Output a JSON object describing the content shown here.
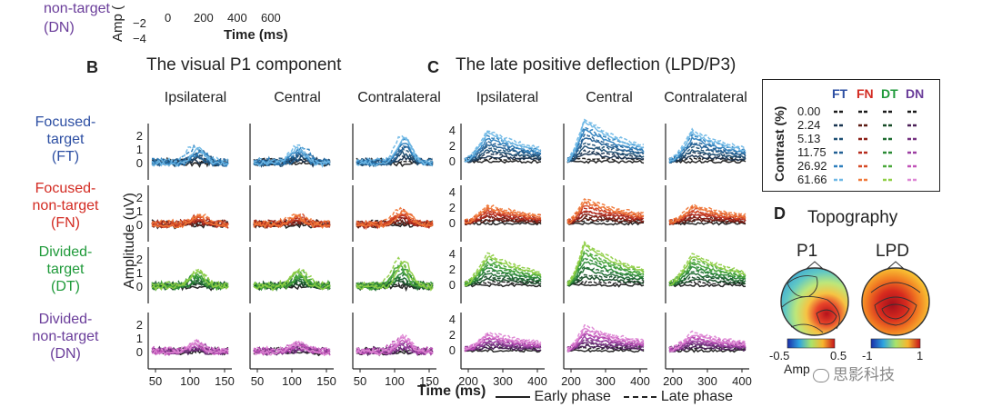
{
  "top_strip": {
    "y_axis_label": "Amp (",
    "y_ticks": [
      "−2",
      "−4"
    ],
    "x_ticks": [
      "0",
      "200",
      "400",
      "600"
    ],
    "x_label": "Time (ms)",
    "partial_condition": [
      "non-target",
      "(DN)"
    ]
  },
  "panel_b": {
    "letter": "B",
    "title": "The visual P1 component",
    "columns": [
      "Ipsilateral",
      "Central",
      "Contralateral"
    ],
    "y_ticks": [
      "2",
      "1",
      "0"
    ],
    "x_ticks": [
      "50",
      "100",
      "150"
    ]
  },
  "panel_c": {
    "letter": "C",
    "title": "The late positive deflection (LPD/P3)",
    "columns": [
      "Ipsilateral",
      "Central",
      "Contralateral"
    ],
    "y_ticks": [
      "4",
      "2",
      "0"
    ],
    "x_ticks": [
      "200",
      "300",
      "400"
    ]
  },
  "conditions": [
    {
      "lines": [
        "Focused-",
        "target",
        "(FT)"
      ],
      "color": "#2d4fa3"
    },
    {
      "lines": [
        "Focused-",
        "non-target",
        "(FN)"
      ],
      "color": "#d32b22"
    },
    {
      "lines": [
        "Divided-",
        "target",
        "(DT)"
      ],
      "color": "#1f9a3a"
    },
    {
      "lines": [
        "Divided-",
        "non-target",
        "(DN)"
      ],
      "color": "#6a3d9a"
    }
  ],
  "y_axis_label": "Amplitude (uV)",
  "x_axis_label": "Time (ms)",
  "phase_legend": {
    "early": "Early phase",
    "late": "Late phase"
  },
  "contrast_legend": {
    "axis_label": "Contrast (%)",
    "headers": [
      {
        "text": "FT",
        "color": "#2d4fa3"
      },
      {
        "text": "FN",
        "color": "#d32b22"
      },
      {
        "text": "DT",
        "color": "#1f9a3a"
      },
      {
        "text": "DN",
        "color": "#6a3d9a"
      }
    ],
    "levels": [
      "0.00",
      "2.24",
      "5.13",
      "11.75",
      "26.92",
      "61.66"
    ]
  },
  "panel_d": {
    "letter": "D",
    "title": "Topography",
    "maps": [
      {
        "label": "P1",
        "scale_min": "-0.5",
        "scale_max": "0.5"
      },
      {
        "label": "LPD",
        "scale_min": "-1",
        "scale_max": "1"
      }
    ],
    "scale_label": "Amp",
    "watermark": "思影科技"
  },
  "palettes": {
    "FT": [
      "#1b1b1b",
      "#17324f",
      "#1d4f74",
      "#215f93",
      "#2d7fbd",
      "#6fb8e6"
    ],
    "FN": [
      "#1b1b1b",
      "#5a1a12",
      "#8a1f16",
      "#b62b1d",
      "#d64a26",
      "#f0793a"
    ],
    "DT": [
      "#1b1b1b",
      "#164a26",
      "#1d6b30",
      "#2a8a35",
      "#4aa83a",
      "#8fcf46"
    ],
    "DN": [
      "#1b1b1b",
      "#4a2057",
      "#74307f",
      "#9c3fa2",
      "#c153b8",
      "#de86d4"
    ]
  }
}
